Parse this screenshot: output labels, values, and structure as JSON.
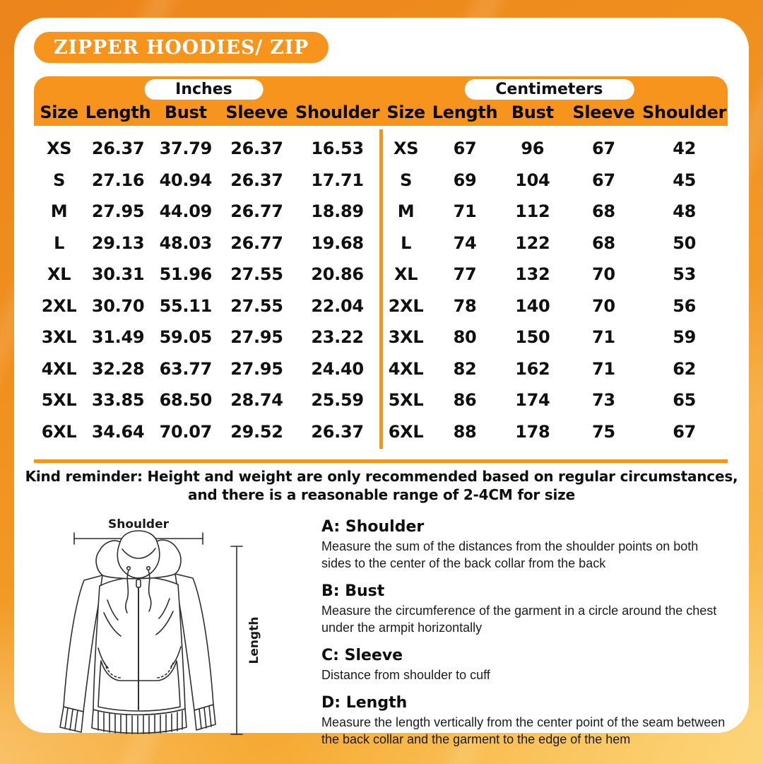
{
  "title": "ZIPPER HOODIES/ ZIP",
  "colors": {
    "accent_orange": "#F7941D",
    "background_orange": "#F0911F",
    "card_white": "#FFFFFF",
    "text_black": "#101010"
  },
  "tables": {
    "columns": [
      "Size",
      "Length",
      "Bust",
      "Sleeve",
      "Shoulder"
    ],
    "inches": {
      "unit_label": "Inches",
      "rows": [
        [
          "XS",
          "26.37",
          "37.79",
          "26.37",
          "16.53"
        ],
        [
          "S",
          "27.16",
          "40.94",
          "26.37",
          "17.71"
        ],
        [
          "M",
          "27.95",
          "44.09",
          "26.77",
          "18.89"
        ],
        [
          "L",
          "29.13",
          "48.03",
          "26.77",
          "19.68"
        ],
        [
          "XL",
          "30.31",
          "51.96",
          "27.55",
          "20.86"
        ],
        [
          "2XL",
          "30.70",
          "55.11",
          "27.55",
          "22.04"
        ],
        [
          "3XL",
          "31.49",
          "59.05",
          "27.95",
          "23.22"
        ],
        [
          "4XL",
          "32.28",
          "63.77",
          "27.95",
          "24.40"
        ],
        [
          "5XL",
          "33.85",
          "68.50",
          "28.74",
          "25.59"
        ],
        [
          "6XL",
          "34.64",
          "70.07",
          "29.52",
          "26.37"
        ]
      ]
    },
    "centimeters": {
      "unit_label": "Centimeters",
      "rows": [
        [
          "XS",
          "67",
          "96",
          "67",
          "42"
        ],
        [
          "S",
          "69",
          "104",
          "67",
          "45"
        ],
        [
          "M",
          "71",
          "112",
          "68",
          "48"
        ],
        [
          "L",
          "74",
          "122",
          "68",
          "50"
        ],
        [
          "XL",
          "77",
          "132",
          "70",
          "53"
        ],
        [
          "2XL",
          "78",
          "140",
          "70",
          "56"
        ],
        [
          "3XL",
          "80",
          "150",
          "71",
          "59"
        ],
        [
          "4XL",
          "82",
          "162",
          "71",
          "62"
        ],
        [
          "5XL",
          "86",
          "174",
          "73",
          "65"
        ],
        [
          "6XL",
          "88",
          "178",
          "75",
          "67"
        ]
      ]
    }
  },
  "reminder": {
    "line1": "Kind reminder: Height and weight are only recommended based on regular circumstances,",
    "line2": "and there is a reasonable range of 2-4CM for size"
  },
  "diagram": {
    "shoulder_label": "Shoulder",
    "length_label": "Length"
  },
  "instructions": [
    {
      "heading": "A: Shoulder",
      "body": "Measure the sum of the distances from the shoulder points on both sides to the center of the back collar from the back"
    },
    {
      "heading": "B: Bust",
      "body": "Measure the circumference of the garment in a circle around the chest under the armpit horizontally"
    },
    {
      "heading": "C: Sleeve",
      "body": "Distance from shoulder to cuff"
    },
    {
      "heading": "D: Length",
      "body": "Measure the length vertically from the center point of the seam between the back collar and the garment to the edge of the hem"
    }
  ]
}
